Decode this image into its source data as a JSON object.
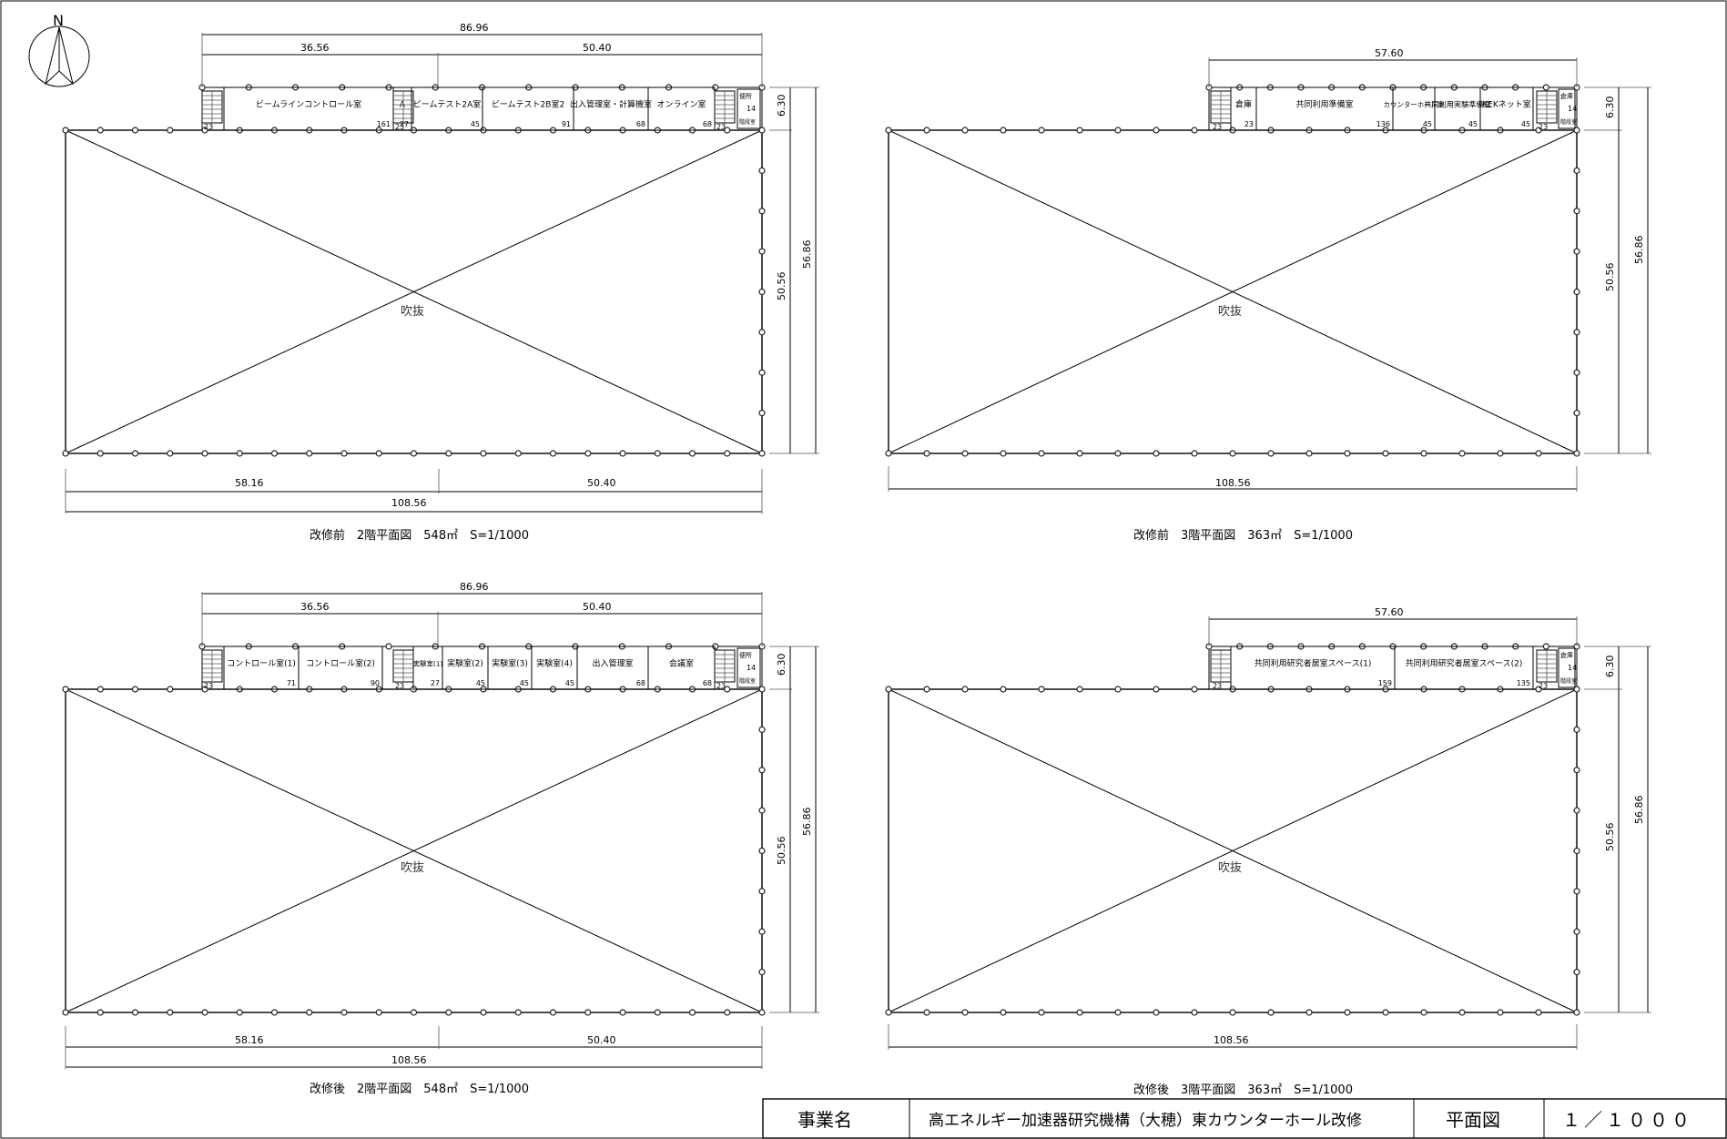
{
  "north_label": "N",
  "void_label": "吹抜",
  "panels": {
    "tl": {
      "caption": "改修前　2階平面図　548㎡　S=1/1000",
      "dim_top_total": "86.96",
      "dim_top_left": "36.56",
      "dim_top_right": "50.40",
      "dim_right_outer": "56.86",
      "dim_right_inner": "50.56",
      "dim_right_band": "6.30",
      "dim_bottom_left": "58.16",
      "dim_bottom_right": "50.40",
      "dim_bottom_total": "108.56",
      "rooms": [
        {
          "name": "ビームラインコントロール室",
          "area": "161"
        },
        {
          "name": "A",
          "area": "27"
        },
        {
          "name": "ビームテスト2A室",
          "area": "45"
        },
        {
          "name": "ビームテスト2B室2",
          "area": "91"
        },
        {
          "name": "出入管理室・計算機室",
          "area": "68"
        },
        {
          "name": "オンライン室",
          "area": "68"
        }
      ],
      "stair_areas": [
        "23",
        "23",
        "23"
      ],
      "wc_label": "便所",
      "wc_area": "14",
      "wc_sub": "階段室"
    },
    "tr": {
      "caption": "改修前　3階平面図　363㎡　S=1/1000",
      "dim_top_total": "57.60",
      "dim_right_outer": "56.86",
      "dim_right_inner": "50.56",
      "dim_right_band": "6.30",
      "dim_bottom_total": "108.56",
      "rooms": [
        {
          "name": "倉庫",
          "area": "23"
        },
        {
          "name": "共同利用準備室",
          "area": "136"
        },
        {
          "name": "カウンターホール室",
          "area": "45"
        },
        {
          "name": "共同利用実験準備室",
          "area": "45"
        },
        {
          "name": "KEKネット室",
          "area": "45"
        }
      ],
      "stair_areas": [
        "23",
        "23"
      ],
      "wc_label": "倉庫",
      "wc_area": "14",
      "wc_sub": "階段室"
    },
    "bl": {
      "caption": "改修後　2階平面図　548㎡　S=1/1000",
      "dim_top_total": "86.96",
      "dim_top_left": "36.56",
      "dim_top_right": "50.40",
      "dim_right_outer": "56.86",
      "dim_right_inner": "50.56",
      "dim_right_band": "6.30",
      "dim_bottom_left": "58.16",
      "dim_bottom_right": "50.40",
      "dim_bottom_total": "108.56",
      "rooms": [
        {
          "name": "コントロール室(1)",
          "area": "71"
        },
        {
          "name": "コントロール室(2)",
          "area": "90"
        },
        {
          "name": "実験室(1)",
          "area": "27"
        },
        {
          "name": "実験室(2)",
          "area": "45"
        },
        {
          "name": "実験室(3)",
          "area": "45"
        },
        {
          "name": "実験室(4)",
          "area": "45"
        },
        {
          "name": "出入管理室",
          "area": "68"
        },
        {
          "name": "会議室",
          "area": "68"
        }
      ],
      "stair_areas": [
        "23",
        "23",
        "23"
      ],
      "wc_label": "便所",
      "wc_area": "14",
      "wc_sub": "階段室"
    },
    "br": {
      "caption": "改修後　3階平面図　363㎡　S=1/1000",
      "dim_top_total": "57.60",
      "dim_right_outer": "56.86",
      "dim_right_inner": "50.56",
      "dim_right_band": "6.30",
      "dim_bottom_total": "108.56",
      "rooms": [
        {
          "name": "共同利用研究者居室スペース(1)",
          "area": "159"
        },
        {
          "name": "共同利用研究者居室スペース(2)",
          "area": "135"
        }
      ],
      "stair_areas": [
        "23",
        "23"
      ],
      "wc_label": "倉庫",
      "wc_area": "14",
      "wc_sub": "階段室"
    }
  },
  "title_block": {
    "project_label": "事業名",
    "project_name": "高エネルギー加速器研究機構（大穂）東カウンターホール改修",
    "drawing_title": "平面図",
    "scale": "１／１０００"
  }
}
